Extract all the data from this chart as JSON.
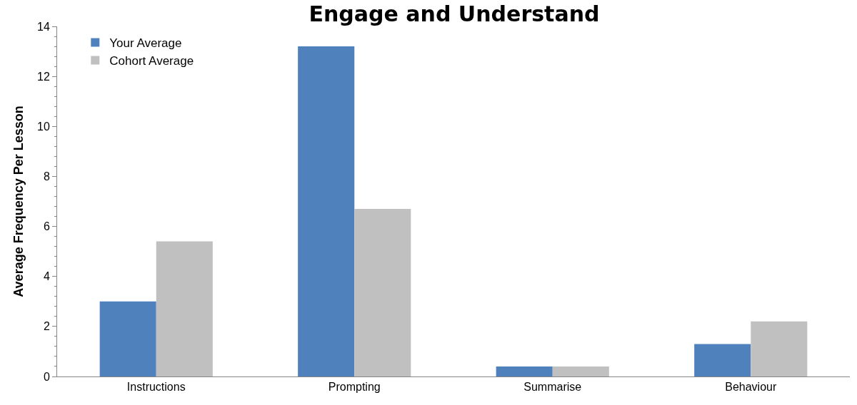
{
  "chart_data": {
    "type": "bar",
    "title": "Engage and Understand",
    "ylabel": "Average Frequency Per Lesson",
    "categories": [
      "Instructions",
      "Prompting",
      "Summarise",
      "Behaviour"
    ],
    "series": [
      {
        "name": "Your Average",
        "color": "#4f81bd",
        "values": [
          3.0,
          13.2,
          0.4,
          1.3
        ]
      },
      {
        "name": "Cohort Average",
        "color": "#c0c0c0",
        "values": [
          5.4,
          6.7,
          0.4,
          2.2
        ]
      }
    ],
    "ylim": [
      0,
      14
    ],
    "yticks": [
      0,
      2,
      4,
      6,
      8,
      10,
      12,
      14
    ],
    "grid": false,
    "legend": "top left"
  }
}
